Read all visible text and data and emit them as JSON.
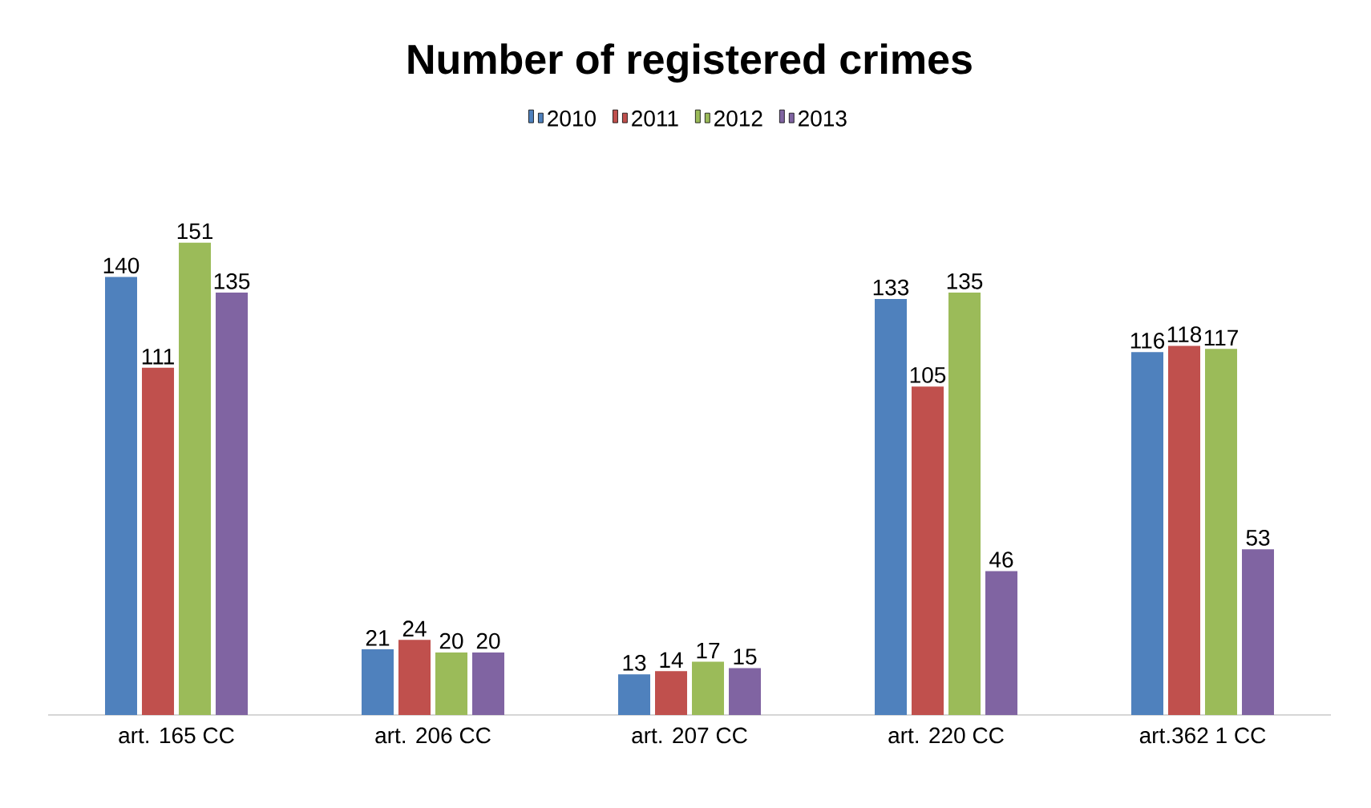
{
  "chart_data": {
    "type": "bar",
    "title": "Number of registered crimes",
    "categories": [
      "art. 165 CC",
      "art. 206 CC",
      "art. 207 CC",
      "art. 220 CC",
      "art.362 1 CC"
    ],
    "series": [
      {
        "name": "2010",
        "color": "#4f81bd",
        "values": [
          140,
          21,
          13,
          133,
          116
        ]
      },
      {
        "name": "2011",
        "color": "#c0504d",
        "values": [
          111,
          24,
          14,
          105,
          118
        ]
      },
      {
        "name": "2012",
        "color": "#9bbb59",
        "values": [
          151,
          20,
          17,
          135,
          117
        ]
      },
      {
        "name": "2013",
        "color": "#8064a2",
        "values": [
          135,
          20,
          15,
          46,
          53
        ]
      }
    ],
    "data_labels": true,
    "legend": "top"
  }
}
